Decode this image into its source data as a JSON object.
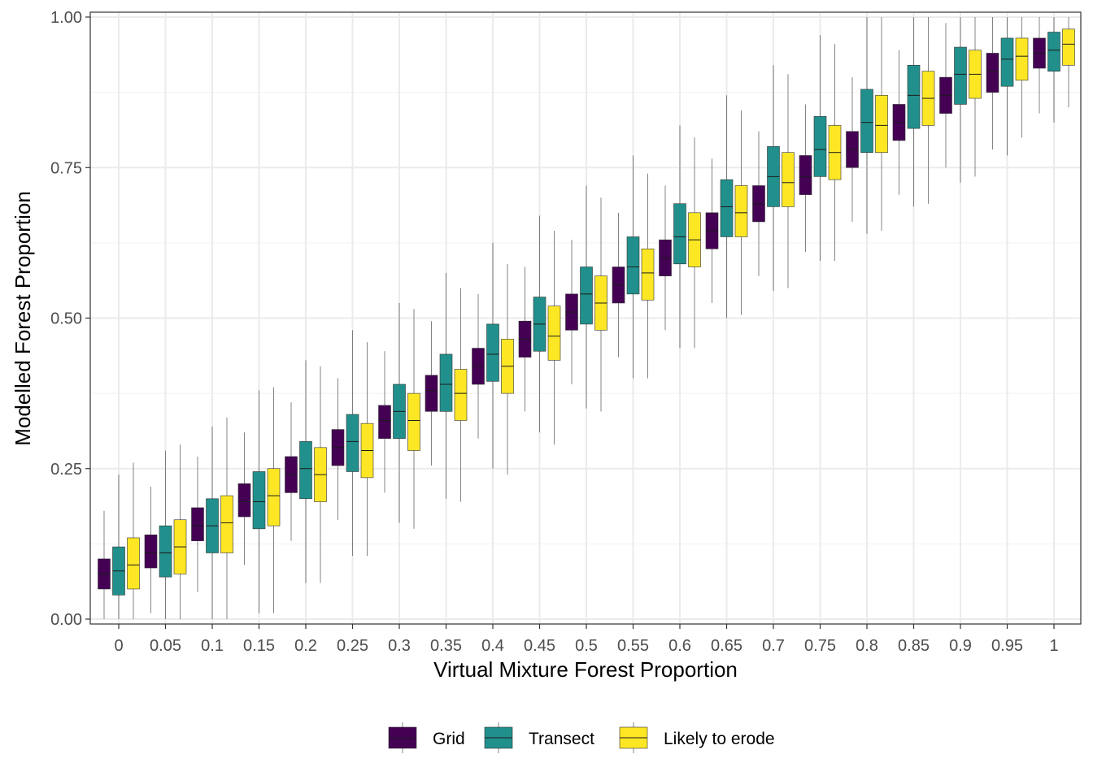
{
  "chart_data": {
    "type": "box",
    "xlabel": "Virtual Mixture Forest Proportion",
    "ylabel": "Modelled Forest Proportion",
    "ylim": [
      0,
      1
    ],
    "yticks": [
      "0.00",
      "0.25",
      "0.50",
      "0.75",
      "1.00"
    ],
    "ytick_values": [
      0,
      0.25,
      0.5,
      0.75,
      1.0
    ],
    "categories": [
      "0",
      "0.05",
      "0.1",
      "0.15",
      "0.2",
      "0.25",
      "0.3",
      "0.35",
      "0.4",
      "0.45",
      "0.5",
      "0.55",
      "0.6",
      "0.65",
      "0.7",
      "0.75",
      "0.8",
      "0.85",
      "0.9",
      "0.95",
      "1"
    ],
    "grid": true,
    "legend_position": "bottom",
    "series": [
      {
        "name": "Grid",
        "color": "#440154",
        "boxes": [
          {
            "q1": 0.05,
            "median": 0.075,
            "q3": 0.1,
            "wlo": 0.0,
            "whi": 0.18
          },
          {
            "q1": 0.085,
            "median": 0.11,
            "q3": 0.14,
            "wlo": 0.01,
            "whi": 0.22
          },
          {
            "q1": 0.13,
            "median": 0.155,
            "q3": 0.185,
            "wlo": 0.045,
            "whi": 0.27
          },
          {
            "q1": 0.17,
            "median": 0.195,
            "q3": 0.225,
            "wlo": 0.09,
            "whi": 0.31
          },
          {
            "q1": 0.21,
            "median": 0.24,
            "q3": 0.27,
            "wlo": 0.13,
            "whi": 0.36
          },
          {
            "q1": 0.255,
            "median": 0.285,
            "q3": 0.315,
            "wlo": 0.165,
            "whi": 0.4
          },
          {
            "q1": 0.3,
            "median": 0.33,
            "q3": 0.355,
            "wlo": 0.21,
            "whi": 0.445
          },
          {
            "q1": 0.345,
            "median": 0.38,
            "q3": 0.405,
            "wlo": 0.255,
            "whi": 0.495
          },
          {
            "q1": 0.39,
            "median": 0.42,
            "q3": 0.45,
            "wlo": 0.3,
            "whi": 0.54
          },
          {
            "q1": 0.435,
            "median": 0.465,
            "q3": 0.495,
            "wlo": 0.345,
            "whi": 0.585
          },
          {
            "q1": 0.48,
            "median": 0.51,
            "q3": 0.54,
            "wlo": 0.39,
            "whi": 0.63
          },
          {
            "q1": 0.525,
            "median": 0.555,
            "q3": 0.585,
            "wlo": 0.435,
            "whi": 0.675
          },
          {
            "q1": 0.57,
            "median": 0.6,
            "q3": 0.63,
            "wlo": 0.48,
            "whi": 0.72
          },
          {
            "q1": 0.615,
            "median": 0.645,
            "q3": 0.675,
            "wlo": 0.525,
            "whi": 0.765
          },
          {
            "q1": 0.66,
            "median": 0.69,
            "q3": 0.72,
            "wlo": 0.57,
            "whi": 0.81
          },
          {
            "q1": 0.705,
            "median": 0.735,
            "q3": 0.77,
            "wlo": 0.61,
            "whi": 0.855
          },
          {
            "q1": 0.75,
            "median": 0.78,
            "q3": 0.81,
            "wlo": 0.66,
            "whi": 0.9
          },
          {
            "q1": 0.795,
            "median": 0.825,
            "q3": 0.855,
            "wlo": 0.705,
            "whi": 0.945
          },
          {
            "q1": 0.84,
            "median": 0.87,
            "q3": 0.9,
            "wlo": 0.75,
            "whi": 0.99
          },
          {
            "q1": 0.875,
            "median": 0.91,
            "q3": 0.94,
            "wlo": 0.78,
            "whi": 1.0
          },
          {
            "q1": 0.915,
            "median": 0.94,
            "q3": 0.965,
            "wlo": 0.84,
            "whi": 1.0
          }
        ]
      },
      {
        "name": "Transect",
        "color": "#21908C",
        "boxes": [
          {
            "q1": 0.04,
            "median": 0.08,
            "q3": 0.12,
            "wlo": 0.0,
            "whi": 0.24
          },
          {
            "q1": 0.07,
            "median": 0.11,
            "q3": 0.155,
            "wlo": 0.0,
            "whi": 0.28
          },
          {
            "q1": 0.11,
            "median": 0.155,
            "q3": 0.2,
            "wlo": 0.0,
            "whi": 0.32
          },
          {
            "q1": 0.15,
            "median": 0.195,
            "q3": 0.245,
            "wlo": 0.01,
            "whi": 0.38
          },
          {
            "q1": 0.2,
            "median": 0.25,
            "q3": 0.295,
            "wlo": 0.06,
            "whi": 0.43
          },
          {
            "q1": 0.245,
            "median": 0.295,
            "q3": 0.34,
            "wlo": 0.105,
            "whi": 0.48
          },
          {
            "q1": 0.3,
            "median": 0.345,
            "q3": 0.39,
            "wlo": 0.16,
            "whi": 0.525
          },
          {
            "q1": 0.345,
            "median": 0.39,
            "q3": 0.44,
            "wlo": 0.2,
            "whi": 0.575
          },
          {
            "q1": 0.395,
            "median": 0.44,
            "q3": 0.49,
            "wlo": 0.25,
            "whi": 0.625
          },
          {
            "q1": 0.445,
            "median": 0.49,
            "q3": 0.535,
            "wlo": 0.31,
            "whi": 0.67
          },
          {
            "q1": 0.49,
            "median": 0.54,
            "q3": 0.585,
            "wlo": 0.35,
            "whi": 0.72
          },
          {
            "q1": 0.54,
            "median": 0.585,
            "q3": 0.635,
            "wlo": 0.4,
            "whi": 0.77
          },
          {
            "q1": 0.59,
            "median": 0.635,
            "q3": 0.69,
            "wlo": 0.45,
            "whi": 0.82
          },
          {
            "q1": 0.635,
            "median": 0.685,
            "q3": 0.73,
            "wlo": 0.5,
            "whi": 0.87
          },
          {
            "q1": 0.685,
            "median": 0.735,
            "q3": 0.785,
            "wlo": 0.545,
            "whi": 0.92
          },
          {
            "q1": 0.735,
            "median": 0.78,
            "q3": 0.835,
            "wlo": 0.595,
            "whi": 0.97
          },
          {
            "q1": 0.775,
            "median": 0.825,
            "q3": 0.88,
            "wlo": 0.64,
            "whi": 1.0
          },
          {
            "q1": 0.815,
            "median": 0.87,
            "q3": 0.92,
            "wlo": 0.685,
            "whi": 1.0
          },
          {
            "q1": 0.855,
            "median": 0.905,
            "q3": 0.95,
            "wlo": 0.725,
            "whi": 1.0
          },
          {
            "q1": 0.885,
            "median": 0.93,
            "q3": 0.965,
            "wlo": 0.77,
            "whi": 1.0
          },
          {
            "q1": 0.91,
            "median": 0.945,
            "q3": 0.975,
            "wlo": 0.825,
            "whi": 1.0
          }
        ]
      },
      {
        "name": "Likely to erode",
        "color": "#FDE725",
        "boxes": [
          {
            "q1": 0.05,
            "median": 0.09,
            "q3": 0.135,
            "wlo": 0.0,
            "whi": 0.26
          },
          {
            "q1": 0.075,
            "median": 0.12,
            "q3": 0.165,
            "wlo": 0.0,
            "whi": 0.29
          },
          {
            "q1": 0.11,
            "median": 0.16,
            "q3": 0.205,
            "wlo": 0.0,
            "whi": 0.335
          },
          {
            "q1": 0.155,
            "median": 0.205,
            "q3": 0.25,
            "wlo": 0.01,
            "whi": 0.385
          },
          {
            "q1": 0.195,
            "median": 0.24,
            "q3": 0.285,
            "wlo": 0.06,
            "whi": 0.42
          },
          {
            "q1": 0.235,
            "median": 0.28,
            "q3": 0.325,
            "wlo": 0.105,
            "whi": 0.46
          },
          {
            "q1": 0.28,
            "median": 0.33,
            "q3": 0.375,
            "wlo": 0.15,
            "whi": 0.515
          },
          {
            "q1": 0.33,
            "median": 0.375,
            "q3": 0.415,
            "wlo": 0.195,
            "whi": 0.55
          },
          {
            "q1": 0.375,
            "median": 0.42,
            "q3": 0.465,
            "wlo": 0.24,
            "whi": 0.59
          },
          {
            "q1": 0.43,
            "median": 0.47,
            "q3": 0.52,
            "wlo": 0.29,
            "whi": 0.645
          },
          {
            "q1": 0.48,
            "median": 0.525,
            "q3": 0.57,
            "wlo": 0.345,
            "whi": 0.7
          },
          {
            "q1": 0.53,
            "median": 0.575,
            "q3": 0.615,
            "wlo": 0.4,
            "whi": 0.74
          },
          {
            "q1": 0.585,
            "median": 0.63,
            "q3": 0.675,
            "wlo": 0.45,
            "whi": 0.8
          },
          {
            "q1": 0.635,
            "median": 0.675,
            "q3": 0.72,
            "wlo": 0.505,
            "whi": 0.845
          },
          {
            "q1": 0.685,
            "median": 0.725,
            "q3": 0.775,
            "wlo": 0.55,
            "whi": 0.905
          },
          {
            "q1": 0.73,
            "median": 0.775,
            "q3": 0.82,
            "wlo": 0.595,
            "whi": 0.955
          },
          {
            "q1": 0.775,
            "median": 0.82,
            "q3": 0.87,
            "wlo": 0.645,
            "whi": 1.0
          },
          {
            "q1": 0.82,
            "median": 0.865,
            "q3": 0.91,
            "wlo": 0.69,
            "whi": 1.0
          },
          {
            "q1": 0.865,
            "median": 0.905,
            "q3": 0.945,
            "wlo": 0.735,
            "whi": 1.0
          },
          {
            "q1": 0.895,
            "median": 0.935,
            "q3": 0.965,
            "wlo": 0.8,
            "whi": 1.0
          },
          {
            "q1": 0.92,
            "median": 0.955,
            "q3": 0.98,
            "wlo": 0.85,
            "whi": 1.0
          }
        ]
      }
    ]
  }
}
